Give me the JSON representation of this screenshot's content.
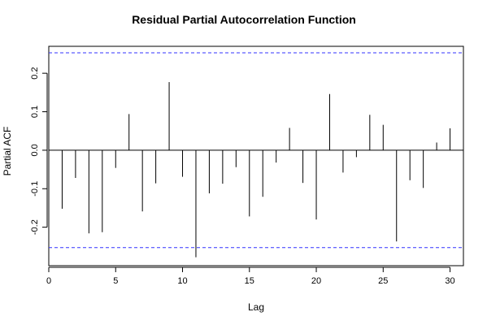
{
  "chart_data": {
    "type": "bar",
    "title": "Residual Partial Autocorrelation Function",
    "xlabel": "Lag",
    "ylabel": "Partial ACF",
    "xlim": [
      0,
      31
    ],
    "ylim": [
      -0.3,
      0.27
    ],
    "x_ticks": [
      0,
      5,
      10,
      15,
      20,
      25,
      30
    ],
    "y_ticks": [
      -0.2,
      -0.1,
      0.0,
      0.1,
      0.2
    ],
    "x_tick_labels": [
      "0",
      "5",
      "10",
      "15",
      "20",
      "25",
      "30"
    ],
    "y_tick_labels": [
      "-0.2",
      "-0.1",
      "0.0",
      "0.1",
      "0.2"
    ],
    "confidence_bound": 0.253,
    "confidence_color": "#3333ff",
    "bar_color": "#000000",
    "grid": false,
    "lags": [
      1,
      2,
      3,
      4,
      5,
      6,
      7,
      8,
      9,
      10,
      11,
      12,
      13,
      14,
      15,
      16,
      17,
      18,
      19,
      20,
      21,
      22,
      23,
      24,
      25,
      26,
      27,
      28,
      29,
      30
    ],
    "values": [
      -0.152,
      -0.072,
      -0.216,
      -0.213,
      -0.046,
      0.094,
      -0.159,
      -0.086,
      0.177,
      -0.069,
      -0.278,
      -0.112,
      -0.087,
      -0.044,
      -0.172,
      -0.121,
      -0.032,
      0.058,
      -0.085,
      -0.18,
      0.146,
      -0.058,
      -0.018,
      0.092,
      0.066,
      -0.237,
      -0.078,
      -0.098,
      0.02,
      0.057
    ]
  }
}
